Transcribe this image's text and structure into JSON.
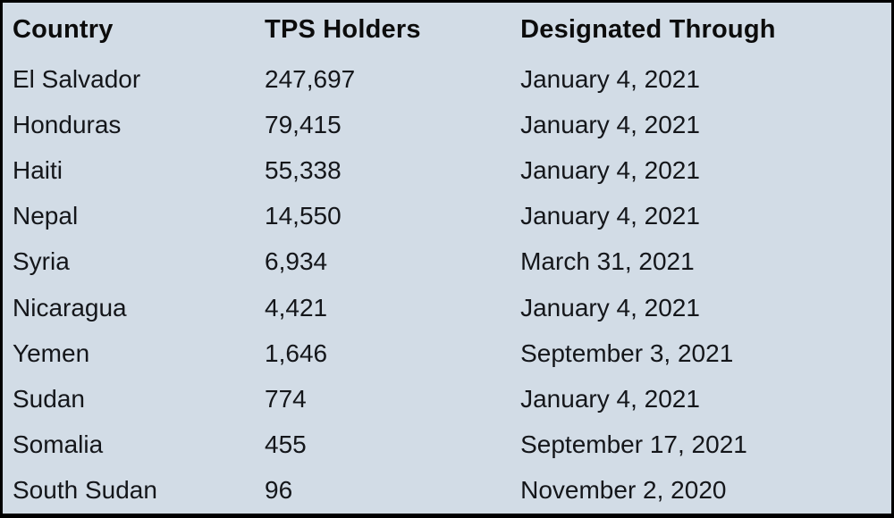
{
  "chart_data": {
    "type": "table",
    "columns": [
      "Country",
      "TPS Holders",
      "Designated Through"
    ],
    "rows": [
      [
        "El Salvador",
        "247,697",
        "January 4, 2021"
      ],
      [
        "Honduras",
        "79,415",
        "January 4, 2021"
      ],
      [
        "Haiti",
        "55,338",
        "January 4, 2021"
      ],
      [
        "Nepal",
        "14,550",
        "January 4, 2021"
      ],
      [
        "Syria",
        "6,934",
        "March 31, 2021"
      ],
      [
        "Nicaragua",
        "4,421",
        "January 4, 2021"
      ],
      [
        "Yemen",
        "1,646",
        "September 3, 2021"
      ],
      [
        "Sudan",
        "774",
        "January 4, 2021"
      ],
      [
        "Somalia",
        "455",
        "September 17, 2021"
      ],
      [
        "South Sudan",
        "96",
        "November 2, 2020"
      ]
    ]
  },
  "colors": {
    "table_background": "#d2dce6",
    "border": "#000000",
    "header_text": "#0c0c0c",
    "body_text": "#14161a"
  }
}
